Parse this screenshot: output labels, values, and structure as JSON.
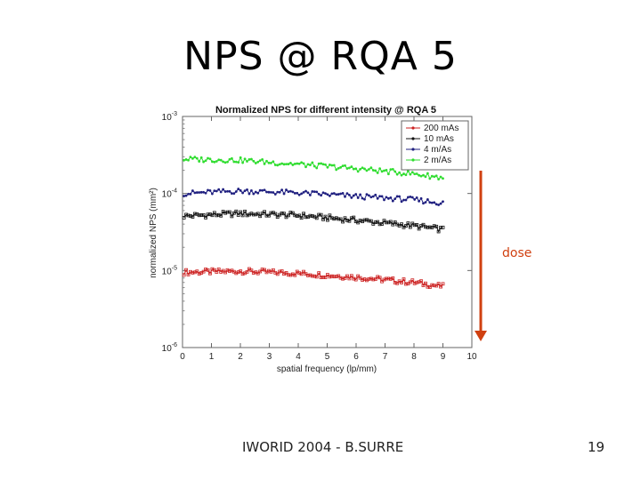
{
  "slide": {
    "title": "NPS @ RQA 5",
    "footer": "IWORID 2004 - B.SURRE",
    "page_number": "19"
  },
  "chart_data": {
    "type": "line",
    "title": "Normalized NPS for different intensity @ RQA 5",
    "xlabel": "spatial frequency (lp/mm)",
    "ylabel": "normalized NPS (mm²)",
    "xlim": [
      0,
      10
    ],
    "ylim": [
      1e-06,
      0.001
    ],
    "y_scale": "log",
    "x_ticks": [
      "0",
      "1",
      "2",
      "3",
      "4",
      "5",
      "6",
      "7",
      "8",
      "9",
      "10"
    ],
    "y_ticks": [
      {
        "base": "10",
        "exp": "-3",
        "value": 0.001
      },
      {
        "base": "10",
        "exp": "-4",
        "value": 0.0001
      },
      {
        "base": "10",
        "exp": "-5",
        "value": 1e-05
      },
      {
        "base": "10",
        "exp": "-6",
        "value": 1e-06
      }
    ],
    "grid": false,
    "legend_position": "top-right",
    "series": [
      {
        "name": "200 mAs",
        "color": "#cc2020",
        "marker": "square",
        "x": [
          0.05,
          2,
          4,
          6,
          8,
          9
        ],
        "y": [
          9.5e-06,
          9.8e-06,
          9.2e-06,
          8.2e-06,
          7e-06,
          6.2e-06
        ]
      },
      {
        "name": "10 mAs",
        "color": "#111111",
        "marker": "square",
        "x": [
          0.05,
          2,
          4,
          6,
          8,
          9
        ],
        "y": [
          5.1e-05,
          5.5e-05,
          5.2e-05,
          4.5e-05,
          3.8e-05,
          3.4e-05
        ]
      },
      {
        "name": "4 m/As",
        "color": "#202080",
        "marker": "diamond",
        "x": [
          0.05,
          2,
          4,
          6,
          8,
          9
        ],
        "y": [
          0.0001,
          0.000108,
          0.000102,
          9.2e-05,
          8.3e-05,
          7.5e-05
        ]
      },
      {
        "name": "2 m/As",
        "color": "#30dd30",
        "marker": "diamond",
        "x": [
          0.05,
          2,
          4,
          6,
          8,
          9
        ],
        "y": [
          0.00028,
          0.00027,
          0.00024,
          0.00021,
          0.00018,
          0.00016
        ]
      }
    ],
    "annotation": {
      "text": "dose",
      "color": "#d04010"
    }
  }
}
